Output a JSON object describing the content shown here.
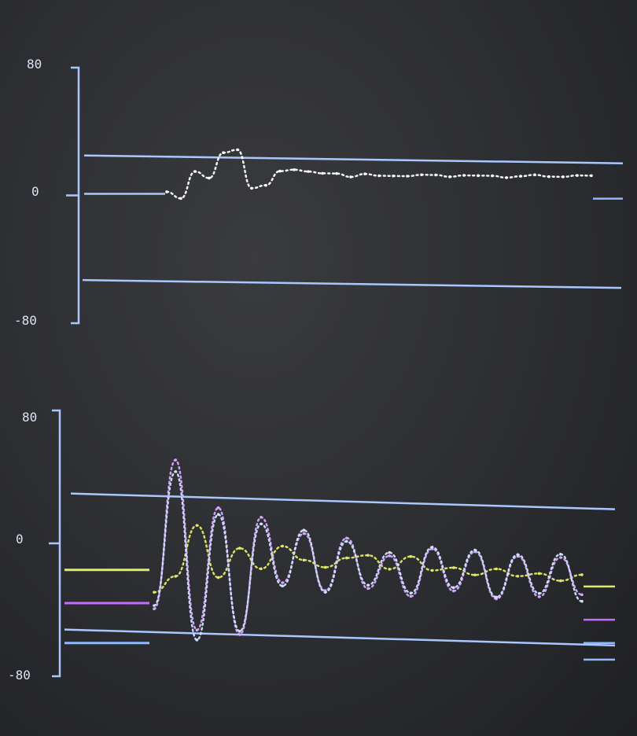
{
  "chart_data": [
    {
      "type": "line",
      "title": "",
      "xlabel": "",
      "ylabel": "",
      "ylim": [
        -80,
        80
      ],
      "y_tick_labels": [
        "80",
        "0",
        "-80"
      ],
      "grid": false,
      "reference_lines": [
        25,
        -53
      ],
      "baseline_level": 1,
      "series": [
        {
          "color": "#ffffff",
          "values": [
            3,
            -1,
            16,
            12,
            28,
            30,
            6,
            8,
            17,
            18,
            17,
            16,
            16,
            14,
            16,
            15,
            15,
            15,
            16,
            16,
            15,
            16,
            16,
            16,
            15,
            16,
            17,
            16,
            16,
            17,
            17
          ]
        }
      ],
      "end_markers": [
        {
          "color": "#8fb8ff",
          "level": -2
        }
      ]
    },
    {
      "type": "line",
      "title": "",
      "xlabel": "",
      "ylabel": "",
      "ylim": [
        -80,
        80
      ],
      "y_tick_labels": [
        "80",
        "0",
        "-80"
      ],
      "grid": false,
      "reference_lines": [
        30,
        -52
      ],
      "series": [
        {
          "color": "#e2e86a",
          "values": [
            -28,
            -18,
            13,
            -18,
            0,
            -12,
            2,
            -6,
            -10,
            -4,
            -2,
            -10,
            -2,
            -10,
            -8,
            -12,
            -8,
            -12,
            -10,
            -14,
            -10
          ]
        },
        {
          "color": "#d8a6ff",
          "values": [
            -38,
            52,
            -50,
            24,
            -52,
            19,
            -20,
            10,
            -24,
            8,
            -22,
            -2,
            -26,
            3,
            -22,
            2,
            -26,
            0,
            -24,
            0,
            -22
          ]
        },
        {
          "color": "#cfe0ff",
          "values": [
            -36,
            45,
            -56,
            20,
            -50,
            15,
            -22,
            12,
            -25,
            6,
            -20,
            0,
            -24,
            4,
            -20,
            3,
            -25,
            1,
            -22,
            2,
            -26
          ]
        }
      ],
      "start_markers": [
        {
          "color": "#e2e86a",
          "level": -16
        },
        {
          "color": "#c76bff",
          "level": -36
        },
        {
          "color": "#8fb8ff",
          "level": -60
        }
      ],
      "end_markers": [
        {
          "color": "#e2e86a",
          "level": -26
        },
        {
          "color": "#c76bff",
          "level": -46
        },
        {
          "color": "#8fb8ff",
          "level": -60
        },
        {
          "color": "#8fb8ff",
          "level": -70
        }
      ]
    }
  ]
}
